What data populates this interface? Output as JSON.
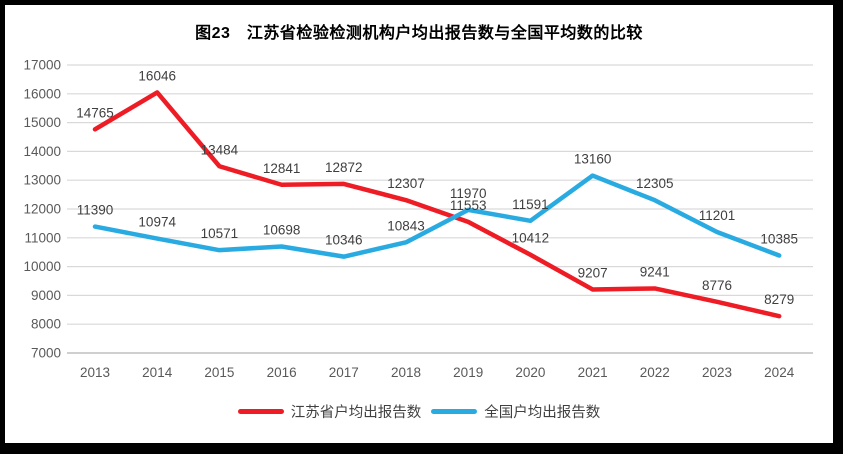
{
  "frame": {
    "background": "#ffffff",
    "border_color": "#000000"
  },
  "chart_data": {
    "type": "line",
    "title": "图23　江苏省检验检测机构户均出报告数与全国平均数的比较",
    "categories": [
      "2013",
      "2014",
      "2015",
      "2016",
      "2017",
      "2018",
      "2019",
      "2020",
      "2021",
      "2022",
      "2023",
      "2024"
    ],
    "series": [
      {
        "name": "江苏省户均出报告数",
        "color": "#ee1c25",
        "values": [
          14765,
          16046,
          13484,
          12841,
          12872,
          12307,
          11553,
          10412,
          9207,
          9241,
          8776,
          8279
        ]
      },
      {
        "name": "全国户均出报告数",
        "color": "#29abe2",
        "values": [
          11390,
          10974,
          10571,
          10698,
          10346,
          10843,
          11970,
          11591,
          13160,
          12305,
          11201,
          10385
        ]
      }
    ],
    "xlabel": "",
    "ylabel": "",
    "y_axis": {
      "min": 7000,
      "max": 17000,
      "step": 1000,
      "ticks": [
        7000,
        8000,
        9000,
        10000,
        11000,
        12000,
        13000,
        14000,
        15000,
        16000,
        17000
      ]
    },
    "grid": "horizontal",
    "data_labels": true,
    "legend_position": "bottom",
    "colors": {
      "gridline": "#d9d9d9",
      "axis_line": "#bfbfbf",
      "tick_text": "#595959",
      "data_label_text": "#3f3f3f",
      "title_text": "#000000"
    }
  }
}
